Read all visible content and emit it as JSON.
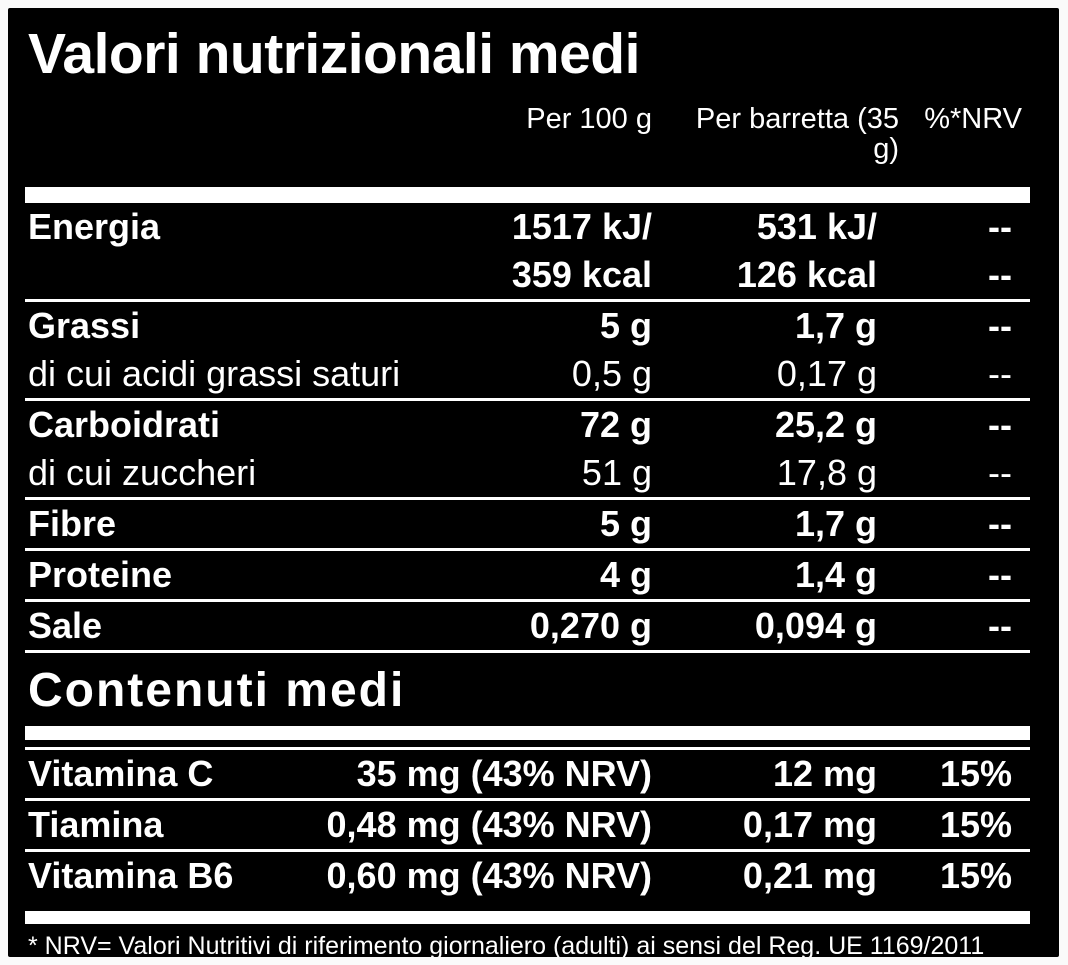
{
  "title": "Valori nutrizionali medi",
  "colors": {
    "panel_background": "#000000",
    "text": "#ffffff",
    "page_margin": "#fafafa",
    "separator": "#ffffff"
  },
  "columns": {
    "per_100g": "Per 100 g",
    "per_barretta": "Per barretta (35 g)",
    "nrv": "%*NRV"
  },
  "nutrition": {
    "rows": [
      {
        "label": "Energia",
        "per_100g": "1517 kJ/",
        "per_barretta": "531 kJ/",
        "nrv": "--"
      },
      {
        "label": "",
        "per_100g": "359 kcal",
        "per_barretta": "126 kcal",
        "nrv": "--"
      },
      {
        "label": "Grassi",
        "per_100g": "5 g",
        "per_barretta": "1,7 g",
        "nrv": "--"
      },
      {
        "label": "di cui acidi grassi saturi",
        "per_100g": "0,5 g",
        "per_barretta": "0,17 g",
        "nrv": "--"
      },
      {
        "label": "Carboidrati",
        "per_100g": "72 g",
        "per_barretta": "25,2 g",
        "nrv": "--"
      },
      {
        "label": "di cui zuccheri",
        "per_100g": "51 g",
        "per_barretta": "17,8 g",
        "nrv": "--"
      },
      {
        "label": "Fibre",
        "per_100g": "5 g",
        "per_barretta": "1,7 g",
        "nrv": "--"
      },
      {
        "label": "Proteine",
        "per_100g": "4 g",
        "per_barretta": "1,4 g",
        "nrv": "--"
      },
      {
        "label": "Sale",
        "per_100g": "0,270 g",
        "per_barretta": "0,094 g",
        "nrv": "--"
      }
    ]
  },
  "contents": {
    "title": "Contenuti medi",
    "rows": [
      {
        "label": "Vitamina C",
        "per_100g": "35 mg (43% NRV)",
        "per_barretta": "12 mg",
        "nrv": "15%"
      },
      {
        "label": "Tiamina",
        "per_100g": "0,48 mg (43% NRV)",
        "per_barretta": "0,17 mg",
        "nrv": "15%"
      },
      {
        "label": "Vitamina B6",
        "per_100g": "0,60 mg (43% NRV)",
        "per_barretta": "0,21 mg",
        "nrv": "15%"
      }
    ]
  },
  "footnote": "* NRV= Valori Nutritivi di riferimento giornaliero (adulti) ai sensi del Reg. UE 1169/2011"
}
